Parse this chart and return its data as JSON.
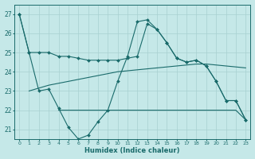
{
  "background_color": "#c5e8e8",
  "line_color": "#1a6b6b",
  "grid_color": "#a8d0d0",
  "xlabel": "Humidex (Indice chaleur)",
  "x": [
    0,
    1,
    2,
    3,
    4,
    5,
    6,
    7,
    8,
    9,
    10,
    11,
    12,
    13,
    14,
    15,
    16,
    17,
    18,
    19,
    20,
    21,
    22,
    23
  ],
  "line_upper": [
    27.0,
    25.0,
    25.0,
    25.0,
    24.8,
    24.8,
    24.7,
    24.6,
    24.6,
    24.6,
    24.6,
    24.7,
    24.8,
    26.5,
    26.2,
    25.5,
    24.7,
    24.5,
    24.6,
    24.3,
    23.5,
    22.5,
    22.5,
    21.5
  ],
  "line_wavy": [
    27.0,
    25.0,
    23.0,
    23.1,
    22.1,
    21.1,
    20.5,
    20.7,
    21.4,
    22.0,
    23.5,
    24.8,
    26.6,
    26.7,
    26.2,
    25.5,
    24.7,
    24.5,
    24.6,
    24.3,
    23.5,
    22.5,
    22.5,
    21.5
  ],
  "line_linear": [
    null,
    23.0,
    23.15,
    23.3,
    23.4,
    23.5,
    23.6,
    23.7,
    23.8,
    23.9,
    24.0,
    24.05,
    24.1,
    24.15,
    24.2,
    24.25,
    24.3,
    24.35,
    24.4,
    24.4,
    24.35,
    24.3,
    24.25,
    24.2
  ],
  "line_lower": [
    null,
    null,
    null,
    null,
    22.0,
    22.0,
    22.0,
    22.0,
    22.0,
    22.0,
    22.0,
    22.0,
    22.0,
    22.0,
    22.0,
    22.0,
    22.0,
    22.0,
    22.0,
    22.0,
    22.0,
    22.0,
    22.0,
    21.5
  ],
  "ylim": [
    20.5,
    27.5
  ],
  "yticks": [
    21,
    22,
    23,
    24,
    25,
    26,
    27
  ],
  "xlim": [
    -0.5,
    23.5
  ]
}
